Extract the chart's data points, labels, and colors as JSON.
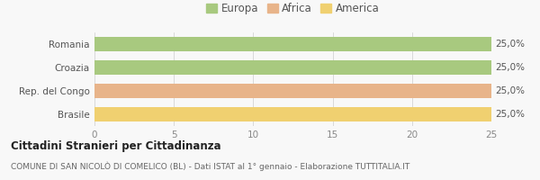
{
  "categories": [
    "Romania",
    "Croazia",
    "Rep. del Congo",
    "Brasile"
  ],
  "values": [
    25,
    25,
    25,
    25
  ],
  "colors": [
    "#a8c97f",
    "#a8c97f",
    "#e8b48a",
    "#f0d070"
  ],
  "legend": [
    {
      "label": "Europa",
      "color": "#a8c97f"
    },
    {
      "label": "Africa",
      "color": "#e8b48a"
    },
    {
      "label": "America",
      "color": "#f0d070"
    }
  ],
  "xlim": [
    0,
    25
  ],
  "xticks": [
    0,
    5,
    10,
    15,
    20,
    25
  ],
  "bar_labels": [
    "25,0%",
    "25,0%",
    "25,0%",
    "25,0%"
  ],
  "title": "Cittadini Stranieri per Cittadinanza",
  "subtitle": "COMUNE DI SAN NICOLÒ DI COMELICO (BL) - Dati ISTAT al 1° gennaio - Elaborazione TUTTITALIA.IT",
  "background_color": "#f8f8f8"
}
